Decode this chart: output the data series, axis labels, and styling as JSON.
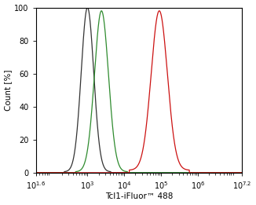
{
  "xlabel": "Tcl1-iFluor™ 488",
  "ylabel": "Count [%]",
  "xmin_log": 1.6,
  "xmax_log": 7.2,
  "ymin": 0,
  "ymax": 100,
  "yticks": [
    0,
    20,
    40,
    60,
    80,
    100
  ],
  "xticks_exp": [
    1.6,
    3,
    4,
    5,
    6,
    7.2
  ],
  "background_color": "#ffffff",
  "curves": [
    {
      "color": "#333333",
      "peak_log10": 3.0,
      "sigma_log10": 0.17,
      "height": 100,
      "base": 0.5
    },
    {
      "color": "#2e8b2e",
      "peak_log10": 3.38,
      "sigma_log10": 0.19,
      "height": 98,
      "base": 0.5
    },
    {
      "color": "#cc1111",
      "peak_log10": 4.95,
      "sigma_log10": 0.22,
      "height": 98,
      "base": 1.5
    }
  ]
}
